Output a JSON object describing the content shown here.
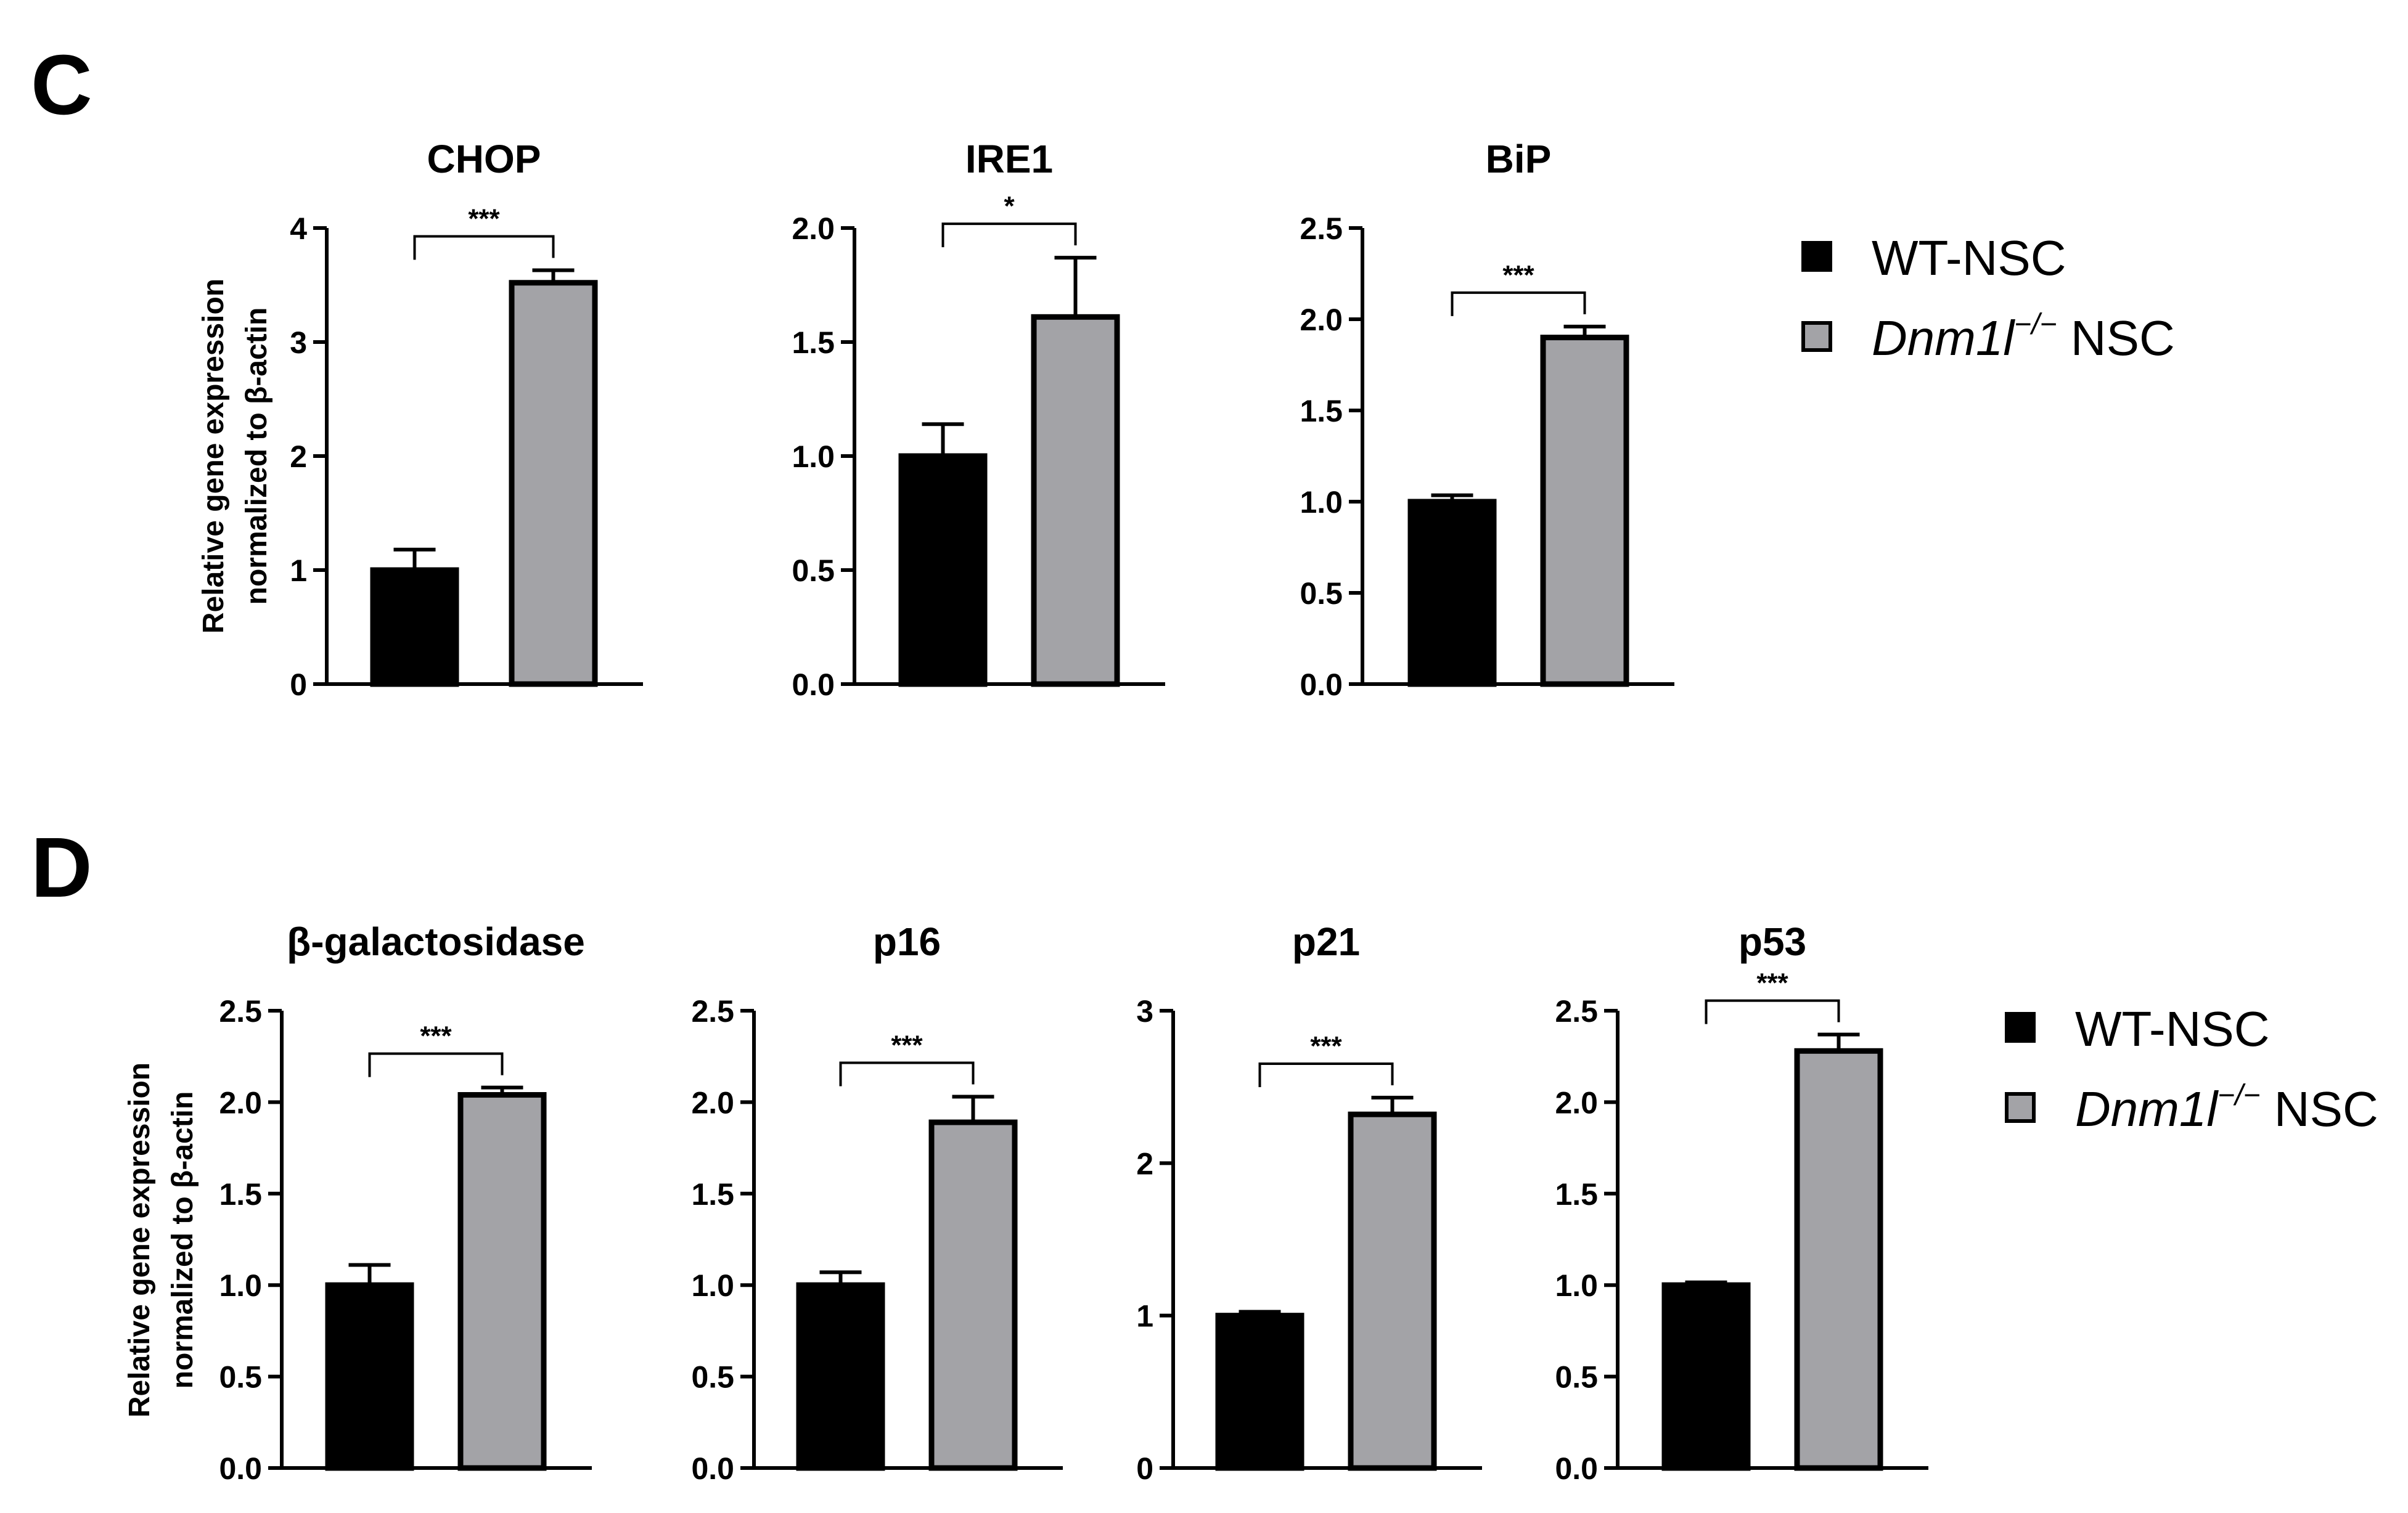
{
  "panels": [
    {
      "letter": "C",
      "ylabel_line1": "Relative gene expression",
      "ylabel_line2": "normalized to β-actin",
      "legend": [
        {
          "label": "WT-NSC",
          "italic_part": "",
          "sup": "",
          "suffix": "",
          "color": "#000000"
        },
        {
          "label": "",
          "italic_part": "Dnm1l",
          "sup": "−/−",
          "suffix": " NSC",
          "color": "#a3a3a7"
        }
      ]
    },
    {
      "letter": "D",
      "ylabel_line1": "Relative gene expression",
      "ylabel_line2": "normalized to β-actin",
      "legend": [
        {
          "label": "WT-NSC",
          "italic_part": "",
          "sup": "",
          "suffix": "",
          "color": "#000000"
        },
        {
          "label": "",
          "italic_part": "Dnm1l",
          "sup": "−/−",
          "suffix": " NSC",
          "color": "#a3a3a7"
        }
      ]
    }
  ],
  "chart_data": [
    {
      "type": "bar",
      "panel": "C",
      "title": "CHOP",
      "categories": [
        "WT-NSC",
        "Dnm1l−/− NSC"
      ],
      "values": [
        1.0,
        3.52
      ],
      "errors": [
        0.18,
        0.11
      ],
      "ylim": [
        0,
        4
      ],
      "yticks": [
        0,
        1,
        2,
        3,
        4
      ],
      "tick_labels": [
        "0",
        "1",
        "2",
        "3",
        "4"
      ],
      "significance": "***"
    },
    {
      "type": "bar",
      "panel": "C",
      "title": "IRE1",
      "categories": [
        "WT-NSC",
        "Dnm1l−/− NSC"
      ],
      "values": [
        1.0,
        1.61
      ],
      "errors": [
        0.14,
        0.26
      ],
      "ylim": [
        0,
        2
      ],
      "yticks": [
        0,
        0.5,
        1,
        1.5,
        2
      ],
      "tick_labels": [
        "0.0",
        "0.5",
        "1.0",
        "1.5",
        "2.0"
      ],
      "significance": "*"
    },
    {
      "type": "bar",
      "panel": "C",
      "title": "BiP",
      "categories": [
        "WT-NSC",
        "Dnm1l−/− NSC"
      ],
      "values": [
        1.0,
        1.9
      ],
      "errors": [
        0.035,
        0.06
      ],
      "ylim": [
        0,
        2.5
      ],
      "yticks": [
        0,
        0.5,
        1,
        1.5,
        2,
        2.5
      ],
      "tick_labels": [
        "0.0",
        "0.5",
        "1.0",
        "1.5",
        "2.0",
        "2.5"
      ],
      "significance": "***"
    },
    {
      "type": "bar",
      "panel": "D",
      "title": "β-galactosidase",
      "categories": [
        "WT-NSC",
        "Dnm1l−/− NSC"
      ],
      "values": [
        1.0,
        2.04
      ],
      "errors": [
        0.11,
        0.04
      ],
      "ylim": [
        0,
        2.5
      ],
      "yticks": [
        0,
        0.5,
        1,
        1.5,
        2,
        2.5
      ],
      "tick_labels": [
        "0.0",
        "0.5",
        "1.0",
        "1.5",
        "2.0",
        "2.5"
      ],
      "significance": "***"
    },
    {
      "type": "bar",
      "panel": "D",
      "title": "p16",
      "categories": [
        "WT-NSC",
        "Dnm1l−/− NSC"
      ],
      "values": [
        1.0,
        1.89
      ],
      "errors": [
        0.07,
        0.14
      ],
      "ylim": [
        0,
        2.5
      ],
      "yticks": [
        0,
        0.5,
        1,
        1.5,
        2,
        2.5
      ],
      "tick_labels": [
        "0.0",
        "0.5",
        "1.0",
        "1.5",
        "2.0",
        "2.5"
      ],
      "significance": "***"
    },
    {
      "type": "bar",
      "panel": "D",
      "title": "p21",
      "categories": [
        "WT-NSC",
        "Dnm1l−/− NSC"
      ],
      "values": [
        1.0,
        2.32
      ],
      "errors": [
        0.025,
        0.11
      ],
      "ylim": [
        0,
        3
      ],
      "yticks": [
        0,
        1,
        2,
        3
      ],
      "tick_labels": [
        "0",
        "1",
        "2",
        "3"
      ],
      "significance": "***"
    },
    {
      "type": "bar",
      "panel": "D",
      "title": "p53",
      "categories": [
        "WT-NSC",
        "Dnm1l−/− NSC"
      ],
      "values": [
        1.0,
        2.28
      ],
      "errors": [
        0.015,
        0.09
      ],
      "ylim": [
        0,
        2.5
      ],
      "yticks": [
        0,
        0.5,
        1,
        1.5,
        2,
        2.5
      ],
      "tick_labels": [
        "0.0",
        "0.5",
        "1.0",
        "1.5",
        "2.0",
        "2.5"
      ],
      "significance": "***"
    }
  ],
  "colors": {
    "wt": "#000000",
    "ko": "#a3a3a7",
    "axis": "#000000"
  }
}
